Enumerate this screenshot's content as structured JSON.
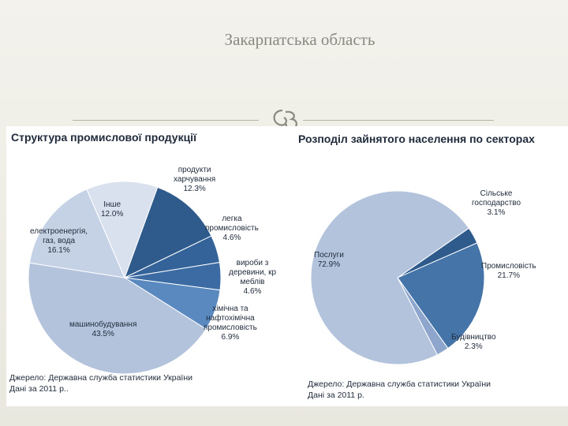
{
  "slide": {
    "title": "Закарпатська область"
  },
  "icons": {
    "decor": "swirl-ornament-icon"
  },
  "colors": {
    "background": "#ecebe3",
    "dark_blue": "#2e5b8c",
    "mid_blue": "#4574a9",
    "light_blue": "#a8bbd8",
    "lighter_blue": "#d5ddec"
  },
  "chart_data": [
    {
      "type": "pie",
      "title": "Структура промислової продукції",
      "source_line1": "Джерело: Державна служба статистики України",
      "source_line2": "Дані за 2011 р..",
      "slices": [
        {
          "name": "продукти харчування",
          "label_lines": [
            "продукти",
            "харчування"
          ],
          "value_label": "12.3%",
          "value": 12.3,
          "color": "#2e5b8c"
        },
        {
          "name": "легка промисловість",
          "label_lines": [
            "легка",
            "промисловість"
          ],
          "value_label": "4.6%",
          "value": 4.6,
          "color": "#34639a"
        },
        {
          "name": "вироби з деревини, кр меблів",
          "label_lines": [
            "вироби з",
            "деревини, кр",
            "меблів"
          ],
          "value_label": "4.6%",
          "value": 4.6,
          "color": "#3c6ba3"
        },
        {
          "name": "хімічна та нафтохімічна промисловість",
          "label_lines": [
            "хімічна та",
            "нафтохімічна",
            "промисловість"
          ],
          "value_label": "6.9%",
          "value": 6.9,
          "color": "#5a89c0"
        },
        {
          "name": "машинобудування",
          "label_lines": [
            "машинобудування"
          ],
          "value_label": "43.5%",
          "value": 43.5,
          "color": "#b4c3dc"
        },
        {
          "name": "електроенергія, газ, вода",
          "label_lines": [
            "електроенергія,",
            "газ, вода"
          ],
          "value_label": "16.1%",
          "value": 16.1,
          "color": "#c5d1e5"
        },
        {
          "name": "Інше",
          "label_lines": [
            "Інше"
          ],
          "value_label": "12.0%",
          "value": 12.0,
          "color": "#d9e0ee"
        }
      ]
    },
    {
      "type": "pie",
      "title": "Розподіл зайнятого населення по секторах",
      "source_line1": "Джерело: Державна служба статистики України",
      "source_line2": "Дані за 2011 р.",
      "slices": [
        {
          "name": "Сільське господарство",
          "label_lines": [
            "Сільське",
            "господарство"
          ],
          "value_label": "3.1%",
          "value": 3.1,
          "color": "#2e5b8c"
        },
        {
          "name": "Промисловість",
          "label_lines": [
            "Промисловість"
          ],
          "value_label": "21.7%",
          "value": 21.7,
          "color": "#4574a9"
        },
        {
          "name": "Будівництво",
          "label_lines": [
            "Будівництво"
          ],
          "value_label": "2.3%",
          "value": 2.3,
          "color": "#8ea6cc"
        },
        {
          "name": "Послуги",
          "label_lines": [
            "Послуги"
          ],
          "value_label": "72.9%",
          "value": 72.9,
          "color": "#b4c3dc"
        }
      ]
    }
  ]
}
